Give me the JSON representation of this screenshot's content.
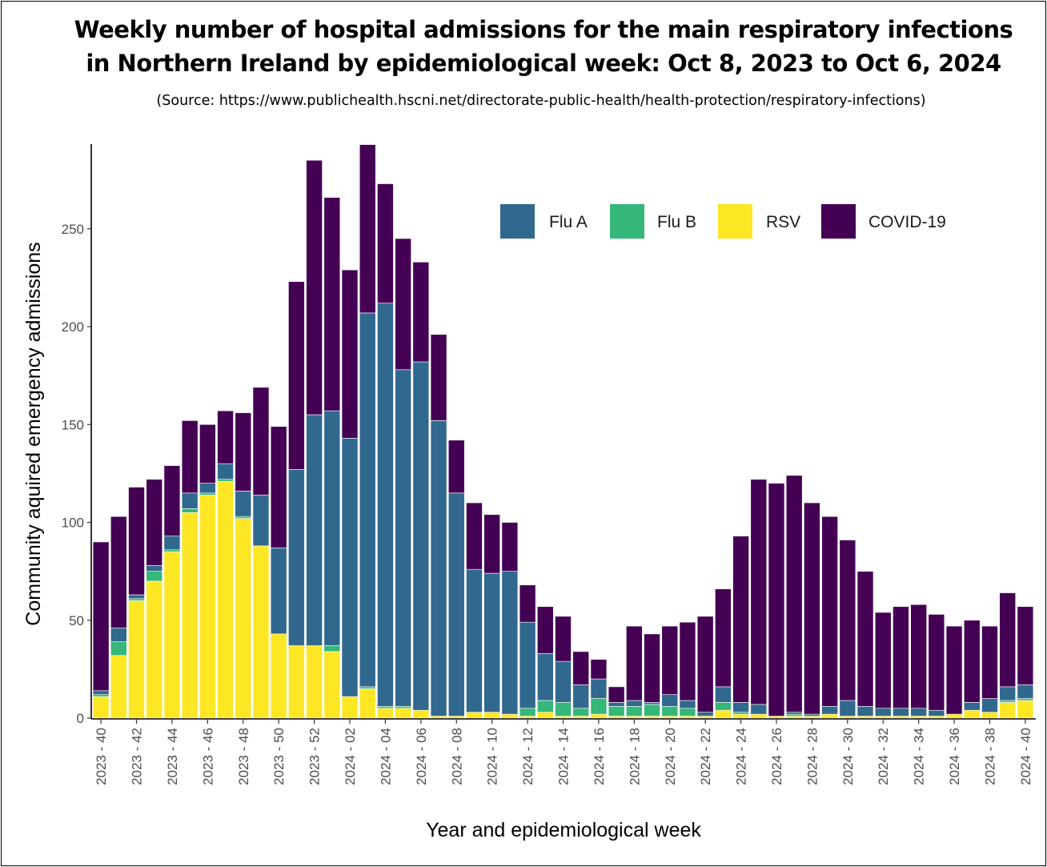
{
  "title_line1": "Weekly number of hospital admissions for the main respiratory infections",
  "title_line2": "in Northern Ireland by epidemiological week: Oct 8, 2023 to Oct 6, 2024",
  "source": "(Source: https://www.publichealth.hscni.net/directorate-public-health/health-protection/respiratory-infections)",
  "chart_data": {
    "type": "bar",
    "stacked": true,
    "title": "Weekly number of hospital admissions for the main respiratory infections in Northern Ireland by epidemiological week: Oct 8, 2023 to Oct 6, 2024",
    "xlabel": "Year and epidemiological week",
    "ylabel": "Community aquired emergency admissions",
    "ylim": [
      0,
      292
    ],
    "yticks": [
      0,
      50,
      100,
      150,
      200,
      250
    ],
    "grid": false,
    "legend_position": "top-right",
    "categories": [
      "2023 - 40",
      "2023 - 41",
      "2023 - 42",
      "2023 - 43",
      "2023 - 44",
      "2023 - 45",
      "2023 - 46",
      "2023 - 47",
      "2023 - 48",
      "2023 - 49",
      "2023 - 50",
      "2023 - 51",
      "2023 - 52",
      "2024 - 01",
      "2024 - 02",
      "2024 - 03",
      "2024 - 04",
      "2024 - 05",
      "2024 - 06",
      "2024 - 07",
      "2024 - 08",
      "2024 - 09",
      "2024 - 10",
      "2024 - 11",
      "2024 - 12",
      "2024 - 13",
      "2024 - 14",
      "2024 - 15",
      "2024 - 16",
      "2024 - 17",
      "2024 - 18",
      "2024 - 19",
      "2024 - 20",
      "2024 - 21",
      "2024 - 22",
      "2024 - 23",
      "2024 - 24",
      "2024 - 25",
      "2024 - 26",
      "2024 - 27",
      "2024 - 28",
      "2024 - 29",
      "2024 - 30",
      "2024 - 31",
      "2024 - 32",
      "2024 - 33",
      "2024 - 34",
      "2024 - 35",
      "2024 - 36",
      "2024 - 37",
      "2024 - 38",
      "2024 - 39",
      "2024 - 40"
    ],
    "tick_labels": [
      "2023 - 40",
      "2023 - 42",
      "2023 - 44",
      "2023 - 46",
      "2023 - 48",
      "2023 - 50",
      "2023 - 52",
      "2024 - 02",
      "2024 - 04",
      "2024 - 06",
      "2024 - 08",
      "2024 - 10",
      "2024 - 12",
      "2024 - 14",
      "2024 - 16",
      "2024 - 18",
      "2024 - 20",
      "2024 - 22",
      "2024 - 24",
      "2024 - 26",
      "2024 - 28",
      "2024 - 30",
      "2024 - 32",
      "2024 - 34",
      "2024 - 36",
      "2024 - 38",
      "2024 - 40"
    ],
    "series": [
      {
        "name": "RSV",
        "color": "#fde725",
        "values": [
          11,
          32,
          60,
          70,
          85,
          105,
          114,
          121,
          102,
          88,
          43,
          37,
          37,
          34,
          11,
          15,
          5,
          5,
          4,
          1,
          1,
          3,
          3,
          2,
          1,
          3,
          1,
          1,
          2,
          1,
          1,
          1,
          1,
          1,
          1,
          4,
          2,
          2,
          1,
          1,
          1,
          2,
          1,
          1,
          1,
          1,
          1,
          1,
          2,
          4,
          3,
          8,
          9
        ]
      },
      {
        "name": "Flu B",
        "color": "#35b779",
        "values": [
          1,
          7,
          1,
          5,
          1,
          2,
          1,
          1,
          1,
          0,
          0,
          0,
          0,
          3,
          0,
          1,
          1,
          1,
          0,
          0,
          0,
          0,
          0,
          0,
          4,
          6,
          7,
          4,
          8,
          5,
          5,
          6,
          5,
          4,
          0,
          4,
          1,
          0,
          0,
          1,
          0,
          0,
          0,
          0,
          0,
          0,
          0,
          0,
          0,
          0,
          0,
          1,
          1
        ]
      },
      {
        "name": "Flu A",
        "color": "#31688e",
        "values": [
          2,
          7,
          2,
          3,
          7,
          8,
          5,
          8,
          13,
          26,
          44,
          90,
          118,
          120,
          132,
          191,
          206,
          172,
          178,
          151,
          114,
          73,
          71,
          73,
          44,
          24,
          21,
          12,
          10,
          2,
          3,
          1,
          6,
          4,
          2,
          8,
          5,
          5,
          0,
          1,
          1,
          4,
          8,
          5,
          4,
          4,
          4,
          3,
          0,
          4,
          7,
          7,
          7
        ]
      },
      {
        "name": "COVID-19",
        "color": "#440154",
        "values": [
          76,
          57,
          55,
          44,
          36,
          37,
          30,
          27,
          40,
          55,
          62,
          96,
          130,
          109,
          86,
          86,
          61,
          67,
          51,
          44,
          27,
          34,
          30,
          25,
          19,
          24,
          23,
          17,
          10,
          8,
          38,
          35,
          35,
          40,
          49,
          50,
          85,
          115,
          119,
          121,
          108,
          97,
          82,
          69,
          49,
          52,
          53,
          49,
          45,
          42,
          37,
          48,
          40
        ]
      }
    ]
  }
}
